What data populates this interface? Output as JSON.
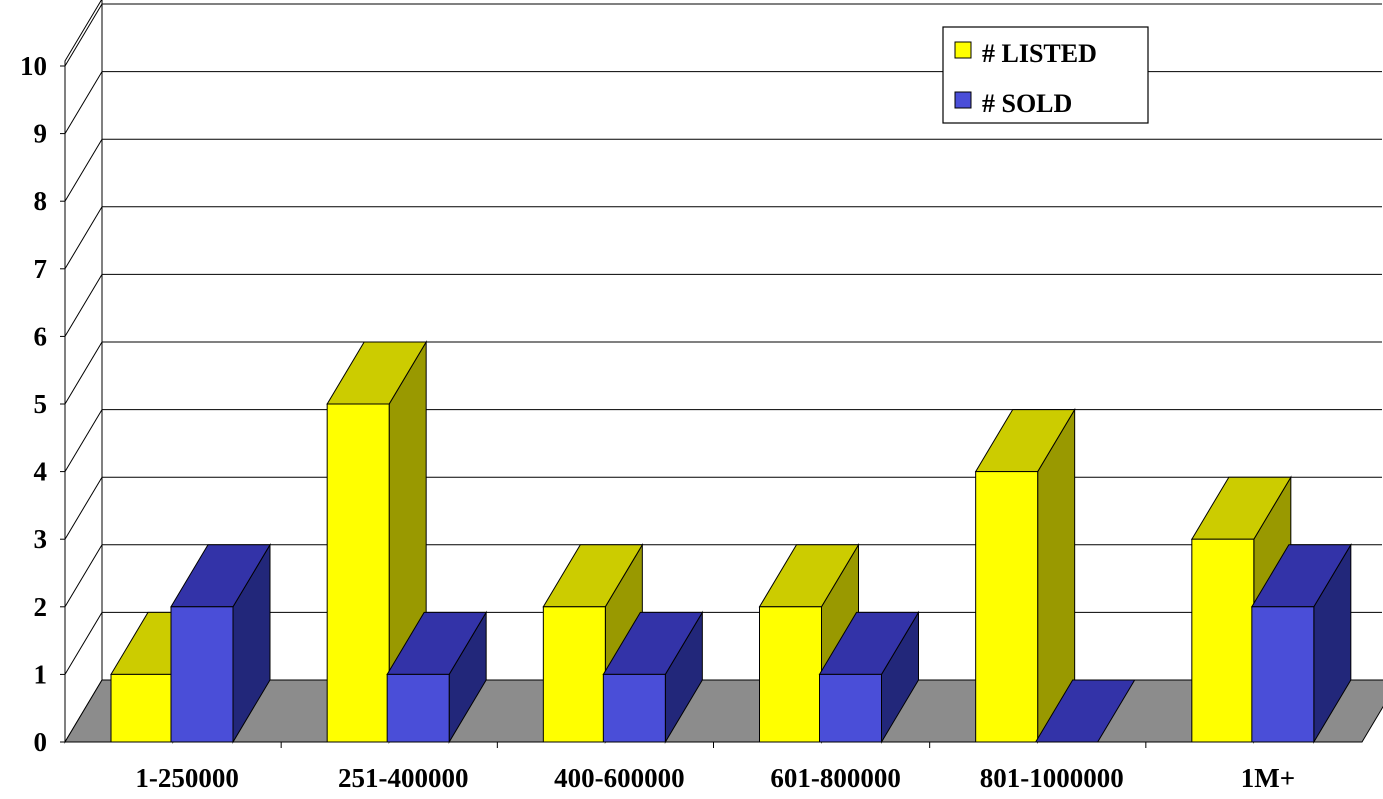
{
  "colors": {
    "listed_front": "#FFFF00",
    "listed_top": "#CCCC00",
    "listed_side": "#999900",
    "sold_front": "#4A4ED8",
    "sold_top": "#3333A8",
    "sold_side": "#22277A",
    "floor": "#8C8C8C"
  },
  "chart_data": {
    "type": "bar",
    "categories": [
      "1-250000",
      "251-400000",
      "400-600000",
      "601-800000",
      "801-1000000",
      "1M+"
    ],
    "series": [
      {
        "name": "# LISTED",
        "values": [
          1,
          5,
          2,
          2,
          4,
          3
        ]
      },
      {
        "name": "# SOLD",
        "values": [
          2,
          1,
          1,
          1,
          0,
          2
        ]
      }
    ],
    "y_ticks": [
      "0",
      "1",
      "2",
      "3",
      "4",
      "5",
      "6",
      "7",
      "8",
      "9",
      "10"
    ],
    "ylim": [
      0,
      10
    ],
    "grid": true,
    "legend_position": "top-right",
    "three_d": true
  }
}
